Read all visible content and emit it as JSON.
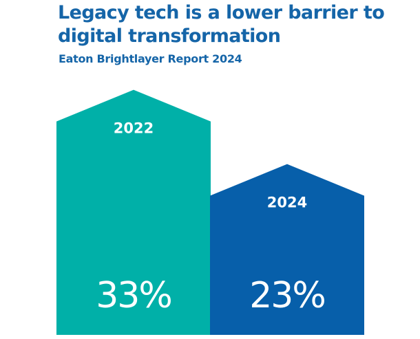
{
  "chart_data": {
    "type": "bar",
    "title": "Legacy tech is a lower barrier to digital transformation",
    "subtitle": "Eaton Brightlayer Report 2024",
    "categories": [
      "2022",
      "2024"
    ],
    "values": [
      33,
      23
    ],
    "value_labels": [
      "33%",
      "23%"
    ],
    "unit": "%",
    "colors": [
      "#00b0a8",
      "#075faa"
    ],
    "xlabel": "",
    "ylabel": "",
    "ylim": [
      0,
      35
    ],
    "grid": false,
    "legend": "none",
    "bar_shape": "house (pointed top)"
  },
  "colors": {
    "title": "#1565a8",
    "text_on_bar": "#ffffff"
  }
}
